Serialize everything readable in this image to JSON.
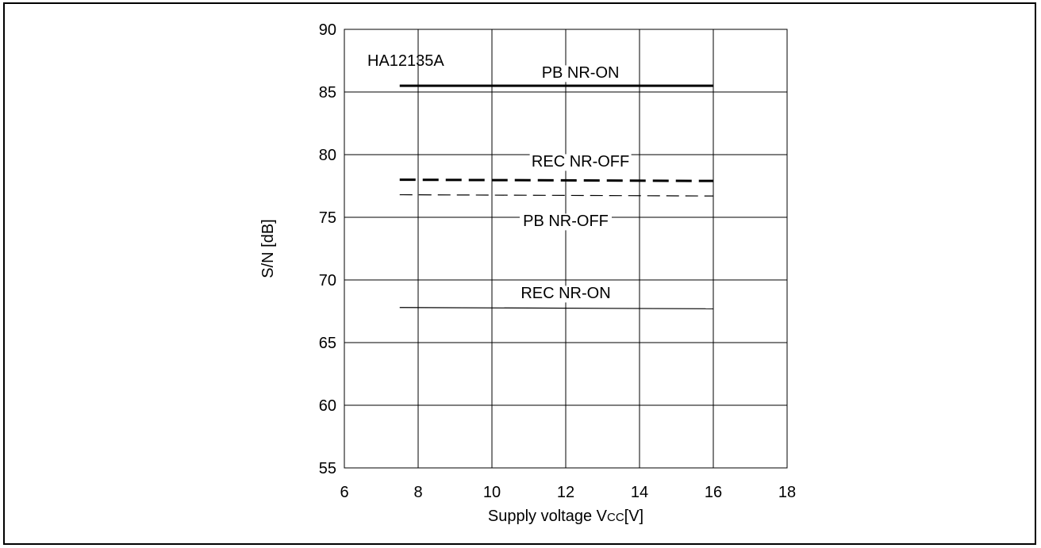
{
  "chart_data": {
    "type": "line",
    "title": "",
    "annotation": "HA12135A",
    "xlabel": "Supply voltage V",
    "xlabel_subscript": "CC",
    "xlabel_unit": "[V]",
    "ylabel": "S/N [dB]",
    "xlim": [
      6,
      18
    ],
    "ylim": [
      55,
      90
    ],
    "xticks": [
      "6",
      "8",
      "10",
      "12",
      "14",
      "16",
      "18"
    ],
    "yticks": [
      "55",
      "60",
      "65",
      "70",
      "75",
      "80",
      "85",
      "90"
    ],
    "grid": true,
    "series": [
      {
        "name": "PB NR-ON",
        "style": "solid-thick",
        "x": [
          7.5,
          16
        ],
        "y": [
          85.5,
          85.5
        ]
      },
      {
        "name": "REC NR-OFF",
        "style": "dashed-thick",
        "x": [
          7.5,
          16
        ],
        "y": [
          78.0,
          77.9
        ]
      },
      {
        "name": "PB NR-OFF",
        "style": "dashed-thin",
        "x": [
          7.5,
          16
        ],
        "y": [
          76.8,
          76.7
        ]
      },
      {
        "name": "REC NR-ON",
        "style": "solid-thin",
        "x": [
          7.5,
          16
        ],
        "y": [
          67.8,
          67.7
        ]
      }
    ]
  }
}
